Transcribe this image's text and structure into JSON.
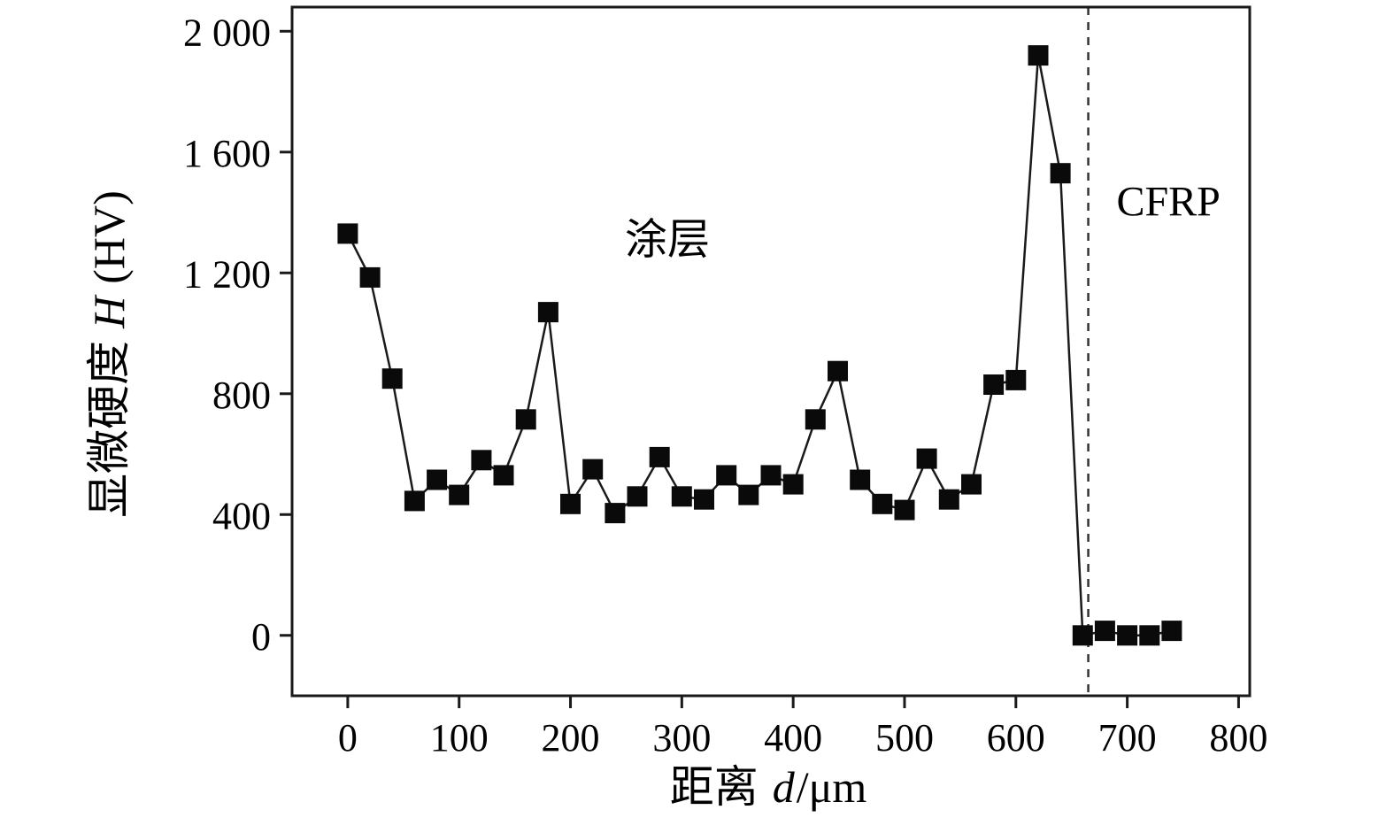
{
  "chart_data": {
    "type": "line",
    "title": "",
    "xlabel": {
      "prefix": "距离",
      "var": "d",
      "suffix": "/μm"
    },
    "ylabel": {
      "prefix": "显微硬度",
      "var": "H",
      "suffix": "(HV)"
    },
    "xlim": [
      -50,
      810
    ],
    "ylim": [
      -200,
      2080
    ],
    "x_ticks": [
      0,
      100,
      200,
      300,
      400,
      500,
      600,
      700,
      800
    ],
    "x_tick_labels": [
      "0",
      "100",
      "200",
      "300",
      "400",
      "500",
      "600",
      "700",
      "800"
    ],
    "y_ticks": [
      0,
      400,
      800,
      1200,
      1600,
      2000
    ],
    "y_tick_labels": [
      "0",
      "400",
      "800",
      "1 200",
      "1 600",
      "2 000"
    ],
    "grid": false,
    "legend": "none",
    "boundary_line": {
      "x": 665,
      "style": "dashed"
    },
    "annotations": [
      {
        "id": "coating",
        "text": "涂层",
        "x": 287,
        "y": 1264
      },
      {
        "id": "cfrp",
        "text": "CFRP",
        "x": 737,
        "y": 1390
      }
    ],
    "series": [
      {
        "name": "microhardness",
        "marker": "square",
        "points": [
          [
            0,
            1330
          ],
          [
            20,
            1185
          ],
          [
            40,
            850
          ],
          [
            60,
            445
          ],
          [
            80,
            515
          ],
          [
            100,
            465
          ],
          [
            120,
            580
          ],
          [
            140,
            530
          ],
          [
            160,
            715
          ],
          [
            180,
            1070
          ],
          [
            200,
            435
          ],
          [
            220,
            550
          ],
          [
            240,
            405
          ],
          [
            260,
            460
          ],
          [
            280,
            590
          ],
          [
            300,
            460
          ],
          [
            320,
            450
          ],
          [
            340,
            530
          ],
          [
            360,
            465
          ],
          [
            380,
            530
          ],
          [
            400,
            500
          ],
          [
            420,
            715
          ],
          [
            440,
            875
          ],
          [
            460,
            515
          ],
          [
            480,
            435
          ],
          [
            500,
            415
          ],
          [
            520,
            585
          ],
          [
            540,
            450
          ],
          [
            560,
            500
          ],
          [
            580,
            830
          ],
          [
            600,
            845
          ],
          [
            620,
            1920
          ],
          [
            640,
            1530
          ],
          [
            660,
            0
          ],
          [
            680,
            15
          ],
          [
            700,
            0
          ],
          [
            720,
            0
          ],
          [
            740,
            15
          ]
        ]
      }
    ],
    "colors": {
      "line": "#1a1a1a",
      "marker": "#0a0a0a",
      "frame": "#1a1a1a",
      "dashed": "#333333"
    }
  }
}
